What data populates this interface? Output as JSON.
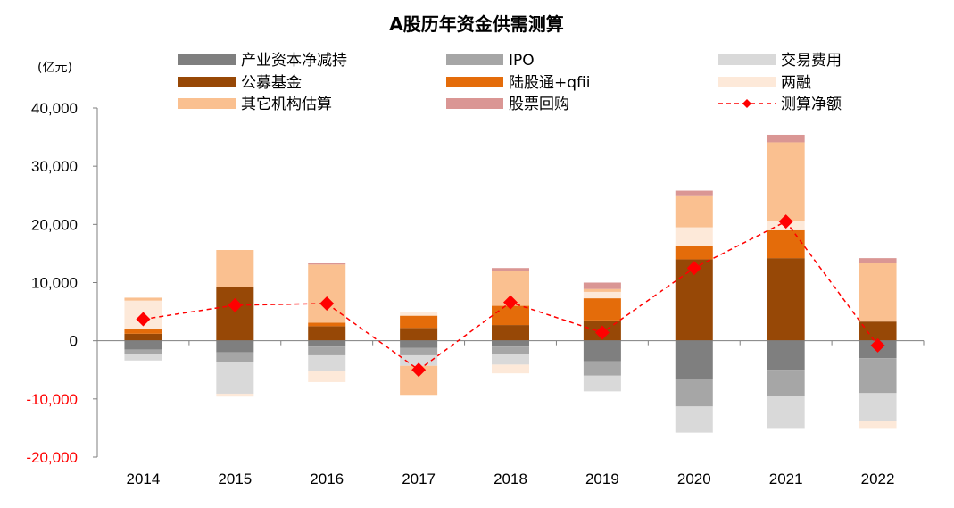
{
  "chart_data": {
    "type": "bar",
    "stacked": true,
    "title": "A股历年资金供需测算",
    "ylabel": "(亿元)",
    "ylim": [
      -20000,
      40000
    ],
    "yticks": [
      40000,
      30000,
      20000,
      10000,
      0,
      -10000,
      -20000
    ],
    "ytick_labels": [
      "40,000",
      "30,000",
      "20,000",
      "10,000",
      "0",
      "-10,000",
      "-20,000"
    ],
    "categories": [
      "2014",
      "2015",
      "2016",
      "2017",
      "2018",
      "2019",
      "2020",
      "2021",
      "2022"
    ],
    "series": [
      {
        "name": "产业资本净减持",
        "color": "#7f7f7f",
        "values": [
          -1500,
          -2000,
          -1000,
          -1200,
          -1000,
          -3500,
          -6500,
          -5000,
          -3000
        ]
      },
      {
        "name": "IPO",
        "color": "#a6a6a6",
        "values": [
          -700,
          -1600,
          -1500,
          -1300,
          -1300,
          -2500,
          -4800,
          -4500,
          -6000
        ]
      },
      {
        "name": "交易费用",
        "color": "#d9d9d9",
        "values": [
          -1200,
          -5500,
          -2700,
          -1800,
          -1800,
          -2700,
          -4500,
          -5500,
          -4800
        ]
      },
      {
        "name": "公募基金",
        "color": "#974806",
        "values": [
          1200,
          9300,
          2500,
          2200,
          2700,
          3500,
          14000,
          14200,
          3300
        ]
      },
      {
        "name": "陆股通+qfii",
        "color": "#e46c0a",
        "values": [
          900,
          0,
          600,
          2100,
          3300,
          3800,
          2300,
          4800,
          0
        ]
      },
      {
        "name": "两融",
        "color": "#fde9d9",
        "values": [
          4800,
          -500,
          -1900,
          600,
          -1500,
          1100,
          3200,
          1600,
          -1200
        ]
      },
      {
        "name": "其它机构估算",
        "color": "#fac090",
        "values": [
          500,
          6300,
          10000,
          -5000,
          6000,
          500,
          5500,
          13500,
          10000
        ]
      },
      {
        "name": "股票回购",
        "color": "#da9694",
        "values": [
          0,
          0,
          200,
          0,
          500,
          1100,
          800,
          1300,
          900
        ]
      }
    ],
    "line_series": {
      "name": "测算净额",
      "color": "#ff0000",
      "values": [
        3700,
        6100,
        6400,
        -5000,
        6600,
        1400,
        12500,
        20500,
        -800
      ]
    },
    "legend_position": "top"
  }
}
